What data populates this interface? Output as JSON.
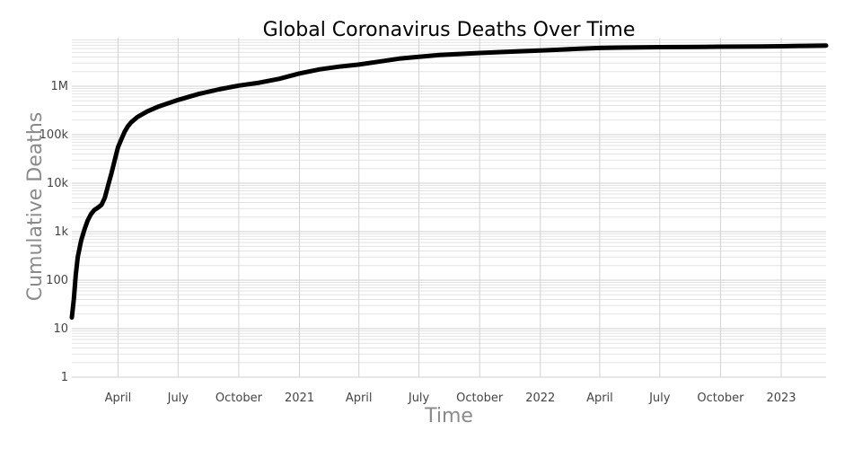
{
  "chart_data": {
    "type": "line",
    "title": "Global Coronavirus Deaths Over Time",
    "xlabel": "Time",
    "ylabel": "Cumulative Deaths",
    "y_scale": "log",
    "ylim": [
      1,
      10000000
    ],
    "xlim": [
      "2020-01-22",
      "2023-03-10"
    ],
    "y_tick_labels": [
      "1",
      "10",
      "100",
      "1k",
      "10k",
      "100k",
      "1M"
    ],
    "y_tick_values": [
      1,
      10,
      100,
      1000,
      10000,
      100000,
      1000000
    ],
    "x_tick_labels": [
      "April",
      "July",
      "October",
      "2021",
      "April",
      "July",
      "October",
      "2022",
      "April",
      "July",
      "October",
      "2023"
    ],
    "x_tick_dates": [
      "2020-04-01",
      "2020-07-01",
      "2020-10-01",
      "2021-01-01",
      "2021-04-01",
      "2021-07-01",
      "2021-10-01",
      "2022-01-01",
      "2022-04-01",
      "2022-07-01",
      "2022-10-01",
      "2023-01-01"
    ],
    "grid": true,
    "line_color": "#000000",
    "series": [
      {
        "x": [
          "2020-01-22",
          "2020-01-25",
          "2020-01-28",
          "2020-01-31",
          "2020-02-05",
          "2020-02-10",
          "2020-02-15",
          "2020-02-20",
          "2020-02-25",
          "2020-03-01",
          "2020-03-07",
          "2020-03-12",
          "2020-03-17",
          "2020-03-22",
          "2020-03-27",
          "2020-04-01",
          "2020-04-06",
          "2020-04-11",
          "2020-04-16",
          "2020-04-21",
          "2020-04-30",
          "2020-05-15",
          "2020-06-01",
          "2020-07-01",
          "2020-08-01",
          "2020-09-01",
          "2020-10-01",
          "2020-11-01",
          "2020-12-01",
          "2021-01-01",
          "2021-02-01",
          "2021-03-01",
          "2021-04-01",
          "2021-05-01",
          "2021-06-01",
          "2021-07-01",
          "2021-08-01",
          "2021-09-01",
          "2021-10-01",
          "2021-11-01",
          "2021-12-01",
          "2022-01-01",
          "2022-02-01",
          "2022-03-01",
          "2022-04-01",
          "2022-05-01",
          "2022-06-01",
          "2022-07-01",
          "2022-08-01",
          "2022-09-01",
          "2022-10-01",
          "2022-11-01",
          "2022-12-01",
          "2023-01-01",
          "2023-02-01",
          "2023-03-10"
        ],
        "values": [
          17,
          40,
          130,
          300,
          650,
          1100,
          1700,
          2300,
          2800,
          3100,
          3600,
          5000,
          9000,
          16000,
          30000,
          55000,
          80000,
          115000,
          150000,
          180000,
          230000,
          300000,
          380000,
          520000,
          690000,
          860000,
          1030000,
          1180000,
          1420000,
          1830000,
          2230000,
          2520000,
          2800000,
          3200000,
          3700000,
          4050000,
          4400000,
          4620000,
          4850000,
          5050000,
          5250000,
          5450000,
          5680000,
          5950000,
          6150000,
          6250000,
          6320000,
          6380000,
          6430000,
          6480000,
          6530000,
          6570000,
          6620000,
          6680000,
          6790000,
          6880000
        ]
      }
    ]
  }
}
